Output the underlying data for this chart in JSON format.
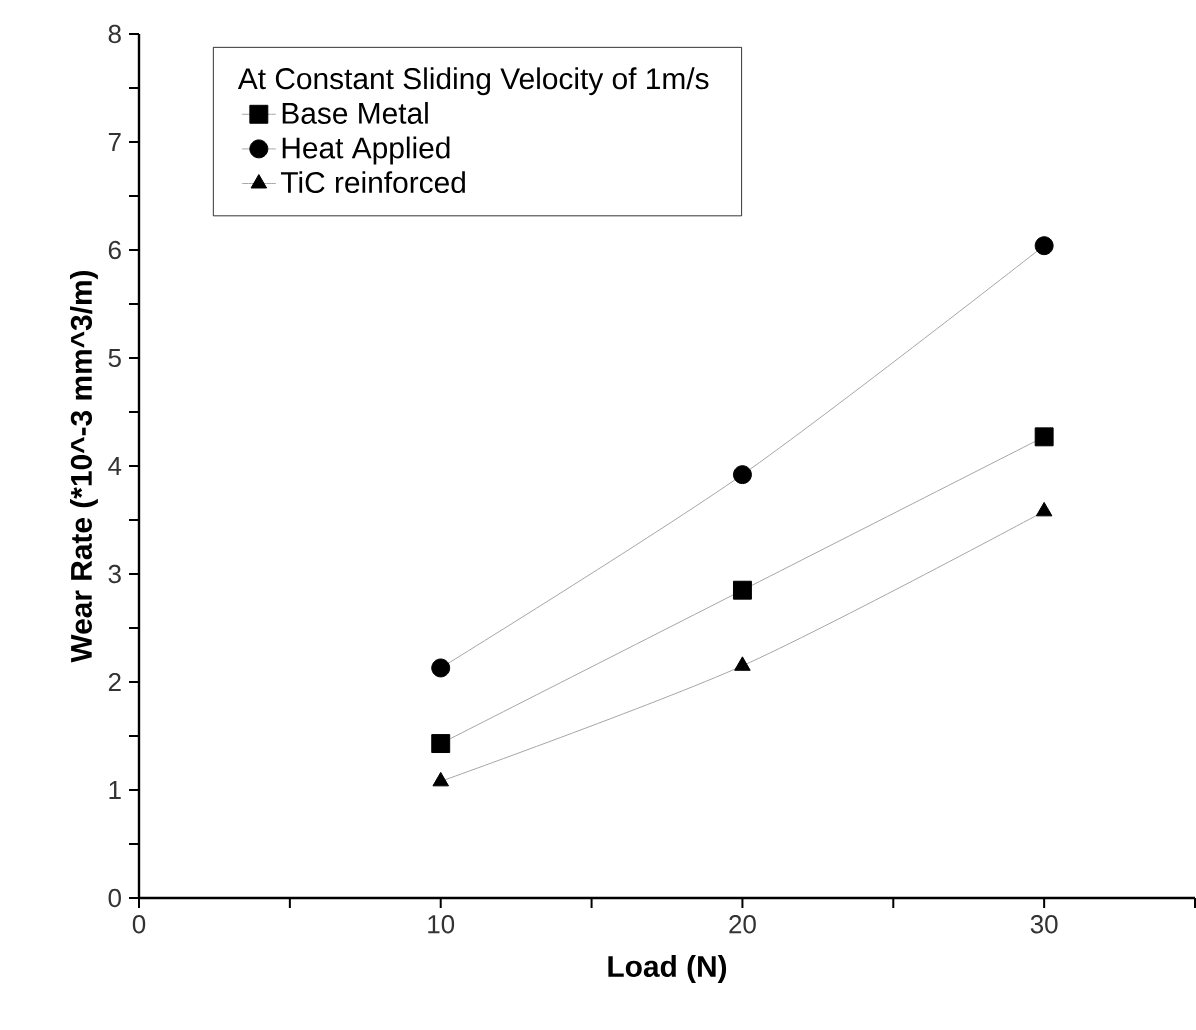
{
  "chart_data": {
    "type": "line",
    "xlabel": "Load (N)",
    "ylabel": "Wear Rate (*10^-3 mm^3/m)",
    "legend_title": "At Constant Sliding Velocity of 1m/s",
    "legend": "top left",
    "grid": false,
    "x": [
      10,
      20,
      30
    ],
    "series": [
      {
        "name": "Base Metal",
        "color": "#000000",
        "marker": "square",
        "values": [
          1.43,
          2.85,
          4.27
        ]
      },
      {
        "name": "Heat Applied",
        "color": "#000000",
        "marker": "circle",
        "values": [
          2.13,
          3.92,
          6.04
        ]
      },
      {
        "name": "TiC reinforced",
        "color": "#000000",
        "marker": "triangle",
        "values": [
          1.08,
          2.15,
          3.58
        ]
      }
    ],
    "xlim": [
      0,
      35
    ],
    "ylim": [
      0,
      8
    ],
    "xticks": [
      0,
      {
        "value": 5,
        "label": null
      },
      10,
      {
        "value": 15,
        "label": null
      },
      20,
      {
        "value": 25,
        "label": null
      },
      30,
      {
        "value": 35,
        "label": null
      }
    ],
    "yticks": [
      0,
      {
        "value": 0.5,
        "label": null
      },
      1,
      {
        "value": 1.5,
        "label": null
      },
      2,
      {
        "value": 2.5,
        "label": null
      },
      3,
      {
        "value": 3.5,
        "label": null
      },
      4,
      {
        "value": 4.5,
        "label": null
      },
      5,
      {
        "value": 5.5,
        "label": null
      },
      6,
      {
        "value": 6.5,
        "label": null
      },
      7,
      {
        "value": 7.5,
        "label": null
      },
      8
    ]
  }
}
